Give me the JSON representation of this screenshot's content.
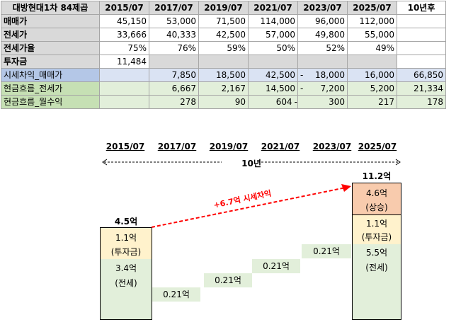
{
  "table": {
    "corner": "대방현대1차 84제곱",
    "headers": [
      "2015/07",
      "2017/07",
      "2019/07",
      "2021/07",
      "2023/07",
      "2025/07",
      "10년후"
    ],
    "rows": [
      {
        "label": "매매가",
        "values": [
          "45,150",
          "53,000",
          "71,500",
          "114,000",
          "96,000",
          "112,000",
          ""
        ]
      },
      {
        "label": "전세가",
        "values": [
          "33,666",
          "40,333",
          "42,500",
          "57,000",
          "49,800",
          "55,000",
          ""
        ]
      },
      {
        "label": "전세가율",
        "values": [
          "75%",
          "76%",
          "59%",
          "50%",
          "52%",
          "49%",
          ""
        ]
      },
      {
        "label": "투자금",
        "values": [
          "11,484",
          "",
          "",
          "",
          "",
          "",
          ""
        ]
      },
      {
        "label": "시세차익_매매가",
        "values": [
          "",
          "7,850",
          "18,500",
          "42,500",
          "18,000",
          "16,000",
          "66,850"
        ]
      },
      {
        "label": "현금흐름_전세가",
        "values": [
          "",
          "6,667",
          "2,167",
          "14,500",
          "7,200",
          "5,200",
          "21,334"
        ]
      },
      {
        "label": "현금흐름_월수익",
        "values": [
          "",
          "278",
          "90",
          "604",
          "300",
          "217",
          "178"
        ]
      }
    ],
    "neg_mark": "-"
  },
  "diagram": {
    "years": [
      "2015/07",
      "2017/07",
      "2019/07",
      "2021/07",
      "2023/07",
      "2025/07"
    ],
    "span_label": "10년",
    "start_total": "4.5억",
    "start_invest_value": "1.1억",
    "start_invest_label": "(투자금)",
    "start_jeonse_value": "3.4억",
    "start_jeonse_label": "(전세)",
    "steps": [
      "0.21억",
      "0.21억",
      "0.21억",
      "0.21억"
    ],
    "end_total": "11.2억",
    "end_gain_value": "4.6억",
    "end_gain_label": "(상승)",
    "end_invest_value": "1.1억",
    "end_invest_label": "(투자금)",
    "end_jeonse_value": "5.5억",
    "end_jeonse_label": "(전세)",
    "gain_annotation": "+6.7억 시세차익",
    "colors": {
      "arrow": "#ff0000",
      "green": "#e2efda",
      "yellow": "#fff2cc",
      "orange": "#f8cbad",
      "blue": "#dae3f3"
    }
  }
}
